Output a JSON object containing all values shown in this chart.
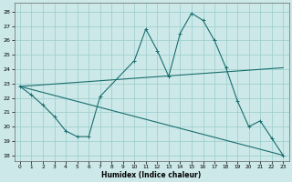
{
  "xlabel": "Humidex (Indice chaleur)",
  "bg_color": "#cce8e8",
  "grid_color": "#99cccc",
  "line_color": "#1a6e6e",
  "xlim": [
    -0.5,
    23.5
  ],
  "ylim": [
    17.6,
    28.6
  ],
  "yticks": [
    18,
    19,
    20,
    21,
    22,
    23,
    24,
    25,
    26,
    27,
    28
  ],
  "xticks": [
    0,
    1,
    2,
    3,
    4,
    5,
    6,
    7,
    8,
    9,
    10,
    11,
    12,
    13,
    14,
    15,
    16,
    17,
    18,
    19,
    20,
    21,
    22,
    23
  ],
  "line1_x": [
    0,
    1,
    2,
    3,
    4,
    5,
    6,
    7,
    10,
    11,
    12,
    13,
    14,
    15,
    16,
    17,
    18,
    19,
    20,
    21,
    22,
    23
  ],
  "line1_y": [
    22.8,
    22.2,
    21.5,
    20.7,
    19.7,
    19.3,
    19.3,
    22.1,
    24.6,
    26.8,
    25.3,
    23.5,
    26.5,
    27.9,
    27.4,
    26.0,
    24.1,
    21.8,
    20.0,
    20.4,
    19.2,
    18.0
  ],
  "line2_x": [
    0,
    23
  ],
  "line2_y": [
    22.8,
    24.1
  ],
  "line3_x": [
    0,
    23
  ],
  "line3_y": [
    22.8,
    18.0
  ]
}
